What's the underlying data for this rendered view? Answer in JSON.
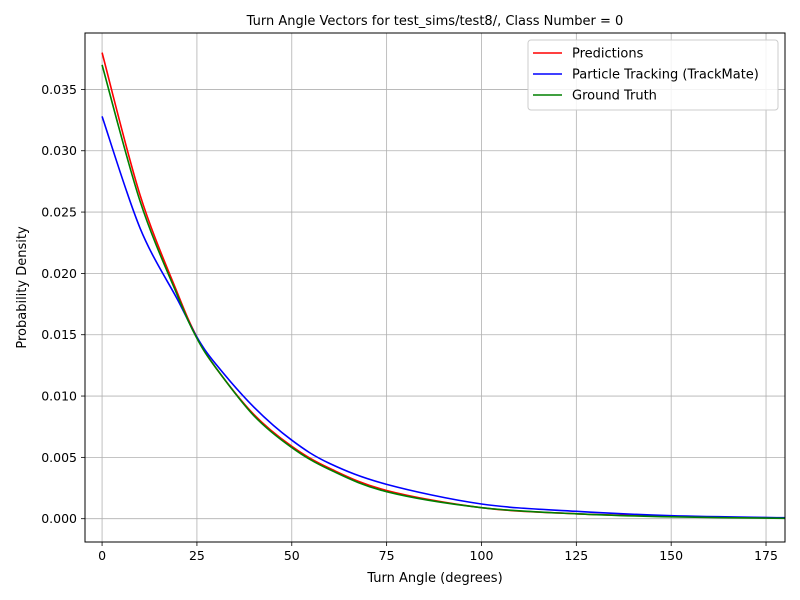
{
  "chart_data": {
    "type": "line",
    "title": "Turn Angle Vectors for test_sims/test8/, Class Number = 0",
    "xlabel": "Turn Angle (degrees)",
    "ylabel": "Probability Density",
    "xlim": [
      -4.5,
      180
    ],
    "ylim": [
      -0.0019,
      0.0396
    ],
    "xticks": [
      0,
      25,
      50,
      75,
      100,
      125,
      150,
      175
    ],
    "yticks": [
      0.0,
      0.005,
      0.01,
      0.015,
      0.02,
      0.025,
      0.03,
      0.035
    ],
    "xtick_labels": [
      "0",
      "25",
      "50",
      "75",
      "100",
      "125",
      "150",
      "175"
    ],
    "ytick_labels": [
      "0.000",
      "0.005",
      "0.010",
      "0.015",
      "0.020",
      "0.025",
      "0.030",
      "0.035"
    ],
    "grid": true,
    "legend_position": "top-right",
    "x": [
      0,
      10,
      20,
      25,
      30,
      40,
      50,
      60,
      75,
      100,
      125,
      150,
      180
    ],
    "series": [
      {
        "name": "Predictions",
        "color": "#ff0000",
        "values": [
          0.038,
          0.0264,
          0.0183,
          0.0148,
          0.0123,
          0.0085,
          0.0059,
          0.0041,
          0.0023,
          0.0009,
          0.0004,
          0.0002,
          5e-05
        ]
      },
      {
        "name": "Particle Tracking (TrackMate)",
        "color": "#0000ff",
        "values": [
          0.0328,
          0.0237,
          0.0178,
          0.0148,
          0.0126,
          0.0091,
          0.0064,
          0.0045,
          0.0028,
          0.0012,
          0.0006,
          0.00025,
          8e-05
        ]
      },
      {
        "name": "Ground Truth",
        "color": "#008000",
        "values": [
          0.037,
          0.0259,
          0.0181,
          0.0147,
          0.0123,
          0.0084,
          0.0058,
          0.004,
          0.0022,
          0.0009,
          0.0004,
          0.00015,
          3e-05
        ]
      }
    ]
  }
}
